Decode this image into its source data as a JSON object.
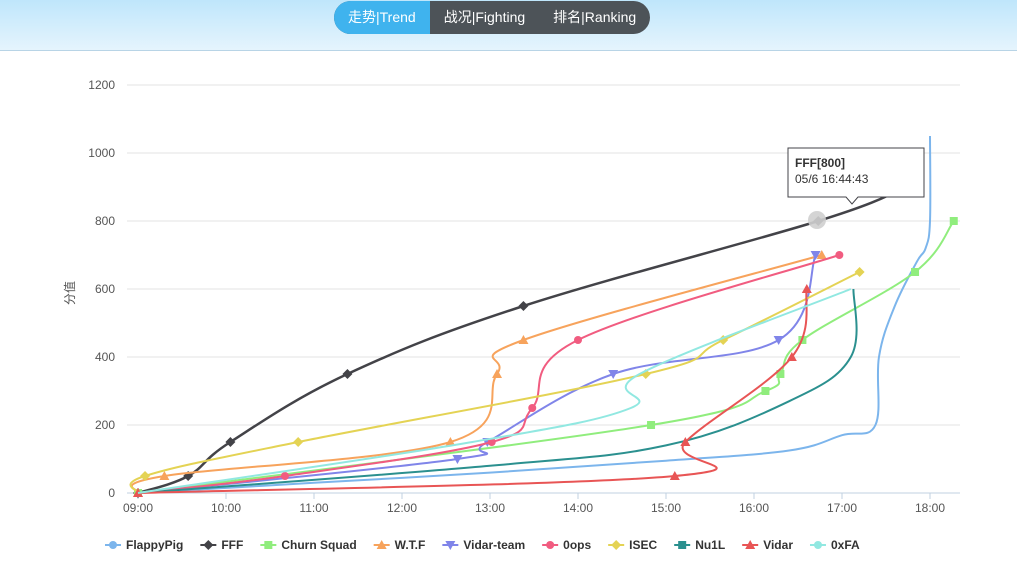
{
  "tabs": [
    {
      "label": "走势|Trend",
      "active": true
    },
    {
      "label": "战况|Fighting",
      "active": false
    },
    {
      "label": "排名|Ranking",
      "active": false
    }
  ],
  "tooltip": {
    "title": "FFF[800]",
    "subtitle": "05/6 16:44:43"
  },
  "colors": {
    "accent": "#3fb3ee",
    "tab_bg": "#4d5358"
  },
  "chart_data": {
    "type": "line",
    "title": "",
    "xlabel": "",
    "ylabel": "分值",
    "xlim": [
      9.0,
      18.4
    ],
    "ylim": [
      0,
      1200
    ],
    "yticks": [
      0,
      200,
      400,
      600,
      800,
      1000,
      1200
    ],
    "xticks": [
      {
        "v": 9,
        "label": "09:00"
      },
      {
        "v": 10,
        "label": "10:00"
      },
      {
        "v": 11,
        "label": "11:00"
      },
      {
        "v": 12,
        "label": "12:00"
      },
      {
        "v": 13,
        "label": "13:00"
      },
      {
        "v": 14,
        "label": "14:00"
      },
      {
        "v": 15,
        "label": "15:00"
      },
      {
        "v": 16,
        "label": "16:00"
      },
      {
        "v": 17,
        "label": "17:00"
      },
      {
        "v": 18,
        "label": "18:00"
      }
    ],
    "grid": true,
    "legend_position": "bottom",
    "series": [
      {
        "name": "FlappyPig",
        "color": "#7cb5ec",
        "marker": "circle",
        "points": [
          [
            9.0,
            0
          ],
          [
            11.0,
            30
          ],
          [
            13.0,
            60
          ],
          [
            15.0,
            95
          ],
          [
            16.4,
            125
          ],
          [
            17.0,
            170
          ],
          [
            17.38,
            200
          ],
          [
            17.42,
            400
          ],
          [
            17.6,
            550
          ],
          [
            17.85,
            680
          ],
          [
            17.95,
            720
          ],
          [
            18.0,
            800
          ],
          [
            18.0,
            1050
          ]
        ]
      },
      {
        "name": "FFF",
        "color": "#434348",
        "marker": "diamond",
        "points": [
          [
            9.0,
            0
          ],
          [
            9.57,
            50
          ],
          [
            10.05,
            150
          ],
          [
            11.38,
            350
          ],
          [
            13.38,
            550
          ],
          [
            16.73,
            800
          ],
          [
            17.73,
            900
          ]
        ]
      },
      {
        "name": "Churn Squad",
        "color": "#90ed7d",
        "marker": "square",
        "points": [
          [
            9.0,
            0
          ],
          [
            14.83,
            200
          ],
          [
            16.13,
            300
          ],
          [
            16.3,
            350
          ],
          [
            16.55,
            450
          ],
          [
            17.83,
            650
          ],
          [
            18.27,
            800
          ]
        ]
      },
      {
        "name": "W.T.F",
        "color": "#f7a35c",
        "marker": "triangle",
        "points": [
          [
            9.0,
            0
          ],
          [
            9.3,
            50
          ],
          [
            12.55,
            150
          ],
          [
            13.08,
            350
          ],
          [
            13.38,
            450
          ],
          [
            16.77,
            700
          ]
        ]
      },
      {
        "name": "Vidar-team",
        "color": "#8085e9",
        "marker": "triangle-down",
        "points": [
          [
            9.0,
            0
          ],
          [
            12.63,
            100
          ],
          [
            12.97,
            150
          ],
          [
            14.4,
            350
          ],
          [
            16.28,
            450
          ],
          [
            16.7,
            700
          ]
        ]
      },
      {
        "name": "0ops",
        "color": "#f15c80",
        "marker": "circle",
        "points": [
          [
            9.0,
            0
          ],
          [
            10.67,
            50
          ],
          [
            13.02,
            150
          ],
          [
            13.48,
            250
          ],
          [
            14.0,
            450
          ],
          [
            16.97,
            700
          ]
        ]
      },
      {
        "name": "ISEC",
        "color": "#e4d354",
        "marker": "diamond",
        "points": [
          [
            9.0,
            0
          ],
          [
            9.08,
            50
          ],
          [
            10.82,
            150
          ],
          [
            14.77,
            350
          ],
          [
            15.65,
            450
          ],
          [
            17.2,
            650
          ]
        ]
      },
      {
        "name": "Nu1L",
        "color": "#2b908f",
        "marker": "square",
        "points": [
          [
            9.0,
            0
          ],
          [
            13.0,
            80
          ],
          [
            15.0,
            140
          ],
          [
            16.4,
            270
          ],
          [
            17.1,
            400
          ],
          [
            17.13,
            600
          ]
        ]
      },
      {
        "name": "Vidar",
        "color": "#e85555",
        "marker": "triangle",
        "points": [
          [
            9.0,
            0
          ],
          [
            15.1,
            50
          ],
          [
            15.22,
            150
          ],
          [
            16.43,
            400
          ],
          [
            16.6,
            600
          ]
        ]
      },
      {
        "name": "0xFA",
        "color": "#91e8e1",
        "marker": "circle",
        "points": [
          [
            9.0,
            0
          ],
          [
            12.8,
            150
          ],
          [
            14.6,
            250
          ],
          [
            14.7,
            350
          ],
          [
            17.1,
            600
          ]
        ]
      }
    ]
  }
}
